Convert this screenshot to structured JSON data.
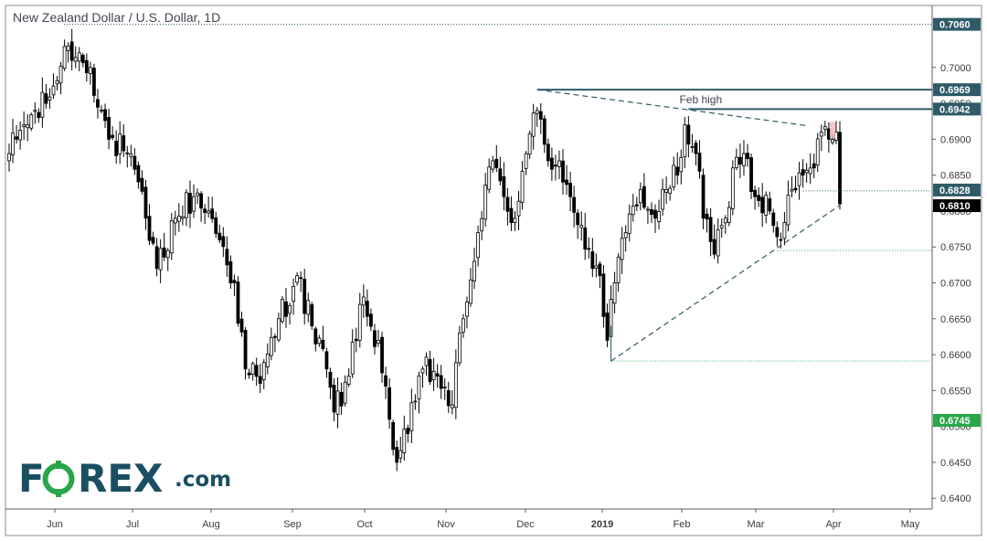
{
  "chart_data": {
    "type": "candlestick",
    "title": "New Zealand Dollar / U.S. Dollar, 1D",
    "ylim": [
      0.6385,
      0.7085
    ],
    "y_ticks": [
      "0.7000",
      "0.6950",
      "0.6900",
      "0.6850",
      "0.6800",
      "0.6750",
      "0.6700",
      "0.6650",
      "0.6600",
      "0.6550",
      "0.6500",
      "0.6450",
      "0.6400"
    ],
    "x_ticks": [
      "Jun",
      "Jul",
      "Aug",
      "Sep",
      "Oct",
      "Nov",
      "Dec",
      "2019",
      "Feb",
      "Mar",
      "Apr",
      "May"
    ],
    "waypoints": [
      {
        "d": 0,
        "p": 0.688
      },
      {
        "d": 4,
        "p": 0.692
      },
      {
        "d": 10,
        "p": 0.695
      },
      {
        "d": 16,
        "p": 0.703
      },
      {
        "d": 22,
        "p": 0.7
      },
      {
        "d": 27,
        "p": 0.69
      },
      {
        "d": 32,
        "p": 0.688
      },
      {
        "d": 37,
        "p": 0.679
      },
      {
        "d": 40,
        "p": 0.672
      },
      {
        "d": 45,
        "p": 0.679
      },
      {
        "d": 50,
        "p": 0.682
      },
      {
        "d": 54,
        "p": 0.68
      },
      {
        "d": 57,
        "p": 0.676
      },
      {
        "d": 61,
        "p": 0.67
      },
      {
        "d": 64,
        "p": 0.658
      },
      {
        "d": 68,
        "p": 0.656
      },
      {
        "d": 73,
        "p": 0.665
      },
      {
        "d": 78,
        "p": 0.671
      },
      {
        "d": 82,
        "p": 0.664
      },
      {
        "d": 86,
        "p": 0.658
      },
      {
        "d": 88,
        "p": 0.652
      },
      {
        "d": 92,
        "p": 0.657
      },
      {
        "d": 95,
        "p": 0.667
      },
      {
        "d": 100,
        "p": 0.662
      },
      {
        "d": 103,
        "p": 0.651
      },
      {
        "d": 105,
        "p": 0.645
      },
      {
        "d": 108,
        "p": 0.649
      },
      {
        "d": 112,
        "p": 0.658
      },
      {
        "d": 116,
        "p": 0.657
      },
      {
        "d": 120,
        "p": 0.653
      },
      {
        "d": 123,
        "p": 0.665
      },
      {
        "d": 127,
        "p": 0.677
      },
      {
        "d": 131,
        "p": 0.687
      },
      {
        "d": 134,
        "p": 0.682
      },
      {
        "d": 137,
        "p": 0.679
      },
      {
        "d": 140,
        "p": 0.688
      },
      {
        "d": 143,
        "p": 0.694
      },
      {
        "d": 146,
        "p": 0.687
      },
      {
        "d": 149,
        "p": 0.687
      },
      {
        "d": 152,
        "p": 0.682
      },
      {
        "d": 155,
        "p": 0.678
      },
      {
        "d": 158,
        "p": 0.672
      },
      {
        "d": 160,
        "p": 0.671
      },
      {
        "d": 162,
        "p": 0.662
      },
      {
        "d": 164,
        "p": 0.67
      },
      {
        "d": 167,
        "p": 0.677
      },
      {
        "d": 171,
        "p": 0.683
      },
      {
        "d": 175,
        "p": 0.679
      },
      {
        "d": 178,
        "p": 0.683
      },
      {
        "d": 181,
        "p": 0.685
      },
      {
        "d": 183,
        "p": 0.692
      },
      {
        "d": 186,
        "p": 0.688
      },
      {
        "d": 188,
        "p": 0.679
      },
      {
        "d": 191,
        "p": 0.674
      },
      {
        "d": 194,
        "p": 0.679
      },
      {
        "d": 196,
        "p": 0.686
      },
      {
        "d": 199,
        "p": 0.688
      },
      {
        "d": 202,
        "p": 0.682
      },
      {
        "d": 206,
        "p": 0.68
      },
      {
        "d": 209,
        "p": 0.676
      },
      {
        "d": 212,
        "p": 0.683
      },
      {
        "d": 215,
        "p": 0.685
      },
      {
        "d": 218,
        "p": 0.686
      },
      {
        "d": 220,
        "p": 0.691
      },
      {
        "d": 222,
        "p": 0.69
      },
      {
        "d": 224,
        "p": 0.691
      },
      {
        "d": 225,
        "p": 0.681
      }
    ],
    "levels": [
      {
        "label": "0.7060",
        "value": 0.706,
        "style": "dotted",
        "color": "#1e4f6c"
      },
      {
        "label": "0.6969",
        "value": 0.6969,
        "style": "solid",
        "color": "#2e5b67"
      },
      {
        "label": "0.6942",
        "value": 0.6942,
        "style": "solid",
        "color": "#2e5b67"
      },
      {
        "label": "0.6828",
        "value": 0.6828,
        "style": "dotted",
        "color": "#1e4f6c"
      },
      {
        "label": "0.6810",
        "value": 0.681,
        "style": "tag",
        "color": "#000000"
      },
      {
        "label": "0.6745",
        "value": 0.6745,
        "style": "dotted-green",
        "color": "#2aa64a"
      }
    ],
    "level_lines": [
      {
        "value": 0.6745,
        "from_day": 208
      },
      {
        "value": 0.6591,
        "from_day": 163
      }
    ],
    "trendlines": [
      {
        "from": {
          "d": 143,
          "p": 0.6969
        },
        "to": {
          "d": 216,
          "p": 0.6919
        },
        "style": "dashed"
      },
      {
        "from": {
          "d": 163,
          "p": 0.6591
        },
        "to": {
          "d": 225,
          "p": 0.6808
        },
        "style": "dashed"
      }
    ],
    "annotations": [
      {
        "text": "Feb high",
        "day": 186,
        "value": 0.6955
      }
    ],
    "colors": {
      "up": "#ffffff",
      "down": "#000000",
      "wick": "#000000",
      "resistance": "#2e5b67",
      "support": "#2aa64a"
    }
  },
  "logo": {
    "part1": "F",
    "part2": "REX",
    "part3": ".com"
  }
}
